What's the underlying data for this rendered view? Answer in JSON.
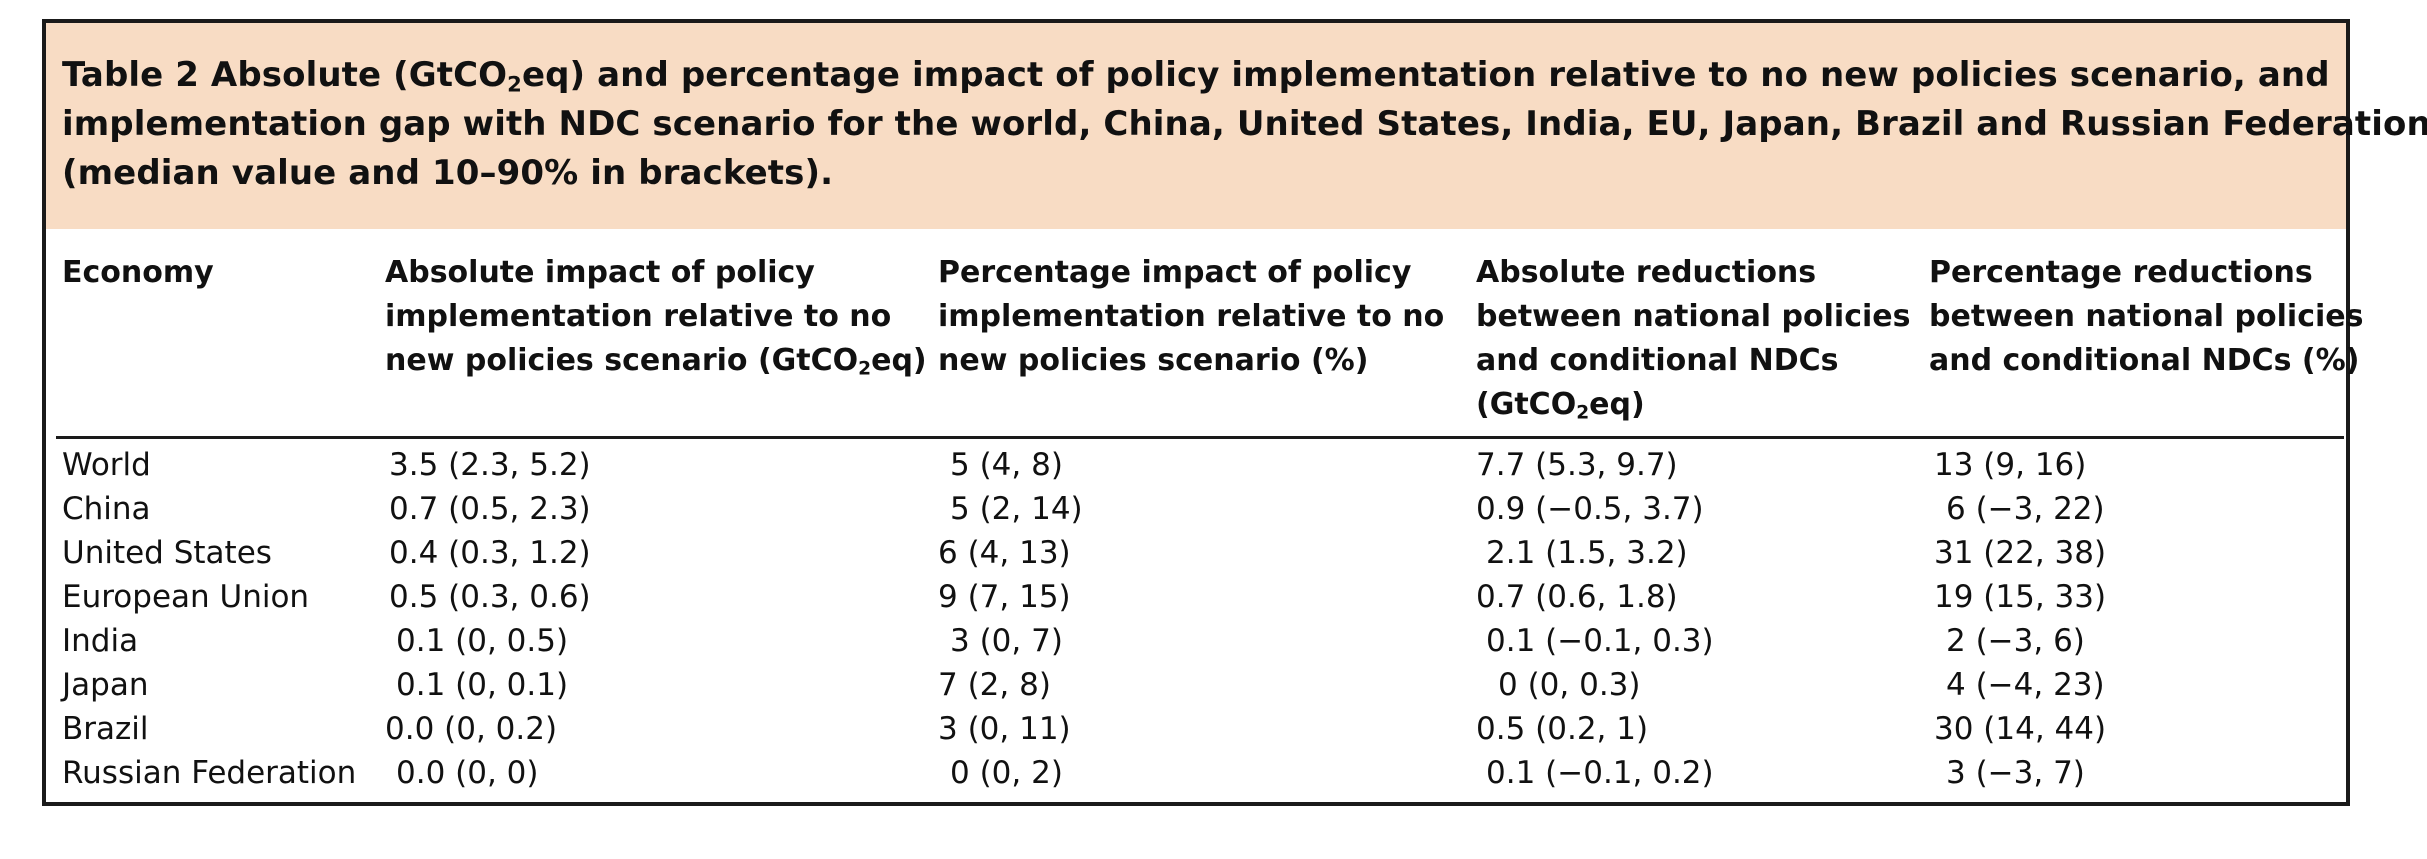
{
  "caption": {
    "line1_pre": "Table 2 Absolute (GtCO",
    "line1_sub": "2",
    "line1_post": "eq) and percentage impact of policy implementation relative to no new policies scenario, and",
    "line2": "implementation gap with NDC scenario for the world, China, United States, India, EU, Japan, Brazil and Russian Federation",
    "line3": "(median value and 10–90% in brackets)."
  },
  "headers": {
    "economy": [
      "Economy"
    ],
    "abs_policy": [
      "Absolute impact of policy",
      "implementation relative to no",
      "new policies scenario (GtCO",
      "2",
      "eq)"
    ],
    "pct_policy": [
      "Percentage impact of policy",
      "implementation relative to no",
      "new policies scenario (%)"
    ],
    "abs_ndc": [
      "Absolute reductions",
      "between national policies",
      "and conditional NDCs",
      "(GtCO",
      "2",
      "eq)"
    ],
    "pct_ndc": [
      "Percentage reductions",
      "between national policies",
      "and conditional NDCs (%)"
    ]
  },
  "rows": [
    {
      "economy": "World",
      "abs_policy": "3.5 (2.3, 5.2)",
      "pct_policy": "5 (4, 8)",
      "abs_ndc": "7.7 (5.3, 9.7)",
      "pct_ndc": "13 (9, 16)"
    },
    {
      "economy": "China",
      "abs_policy": "0.7 (0.5, 2.3)",
      "pct_policy": "5 (2, 14)",
      "abs_ndc": "0.9 (−0.5, 3.7)",
      "pct_ndc": "6 (−3, 22)"
    },
    {
      "economy": "United States",
      "abs_policy": "0.4 (0.3, 1.2)",
      "pct_policy": "6 (4, 13)",
      "abs_ndc": "2.1 (1.5, 3.2)",
      "pct_ndc": "31 (22, 38)"
    },
    {
      "economy": "European Union",
      "abs_policy": "0.5 (0.3, 0.6)",
      "pct_policy": "9 (7, 15)",
      "abs_ndc": "0.7 (0.6, 1.8)",
      "pct_ndc": "19 (15, 33)"
    },
    {
      "economy": "India",
      "abs_policy": "0.1 (0, 0.5)",
      "pct_policy": "3 (0, 7)",
      "abs_ndc": "0.1 (−0.1, 0.3)",
      "pct_ndc": "2 (−3, 6)"
    },
    {
      "economy": "Japan",
      "abs_policy": "0.1 (0, 0.1)",
      "pct_policy": "7 (2, 8)",
      "abs_ndc": "0 (0, 0.3)",
      "pct_ndc": "4 (−4, 23)"
    },
    {
      "economy": "Brazil",
      "abs_policy": "0.0 (0, 0.2)",
      "pct_policy": "3 (0, 11)",
      "abs_ndc": "0.5 (0.2, 1)",
      "pct_ndc": "30 (14, 44)"
    },
    {
      "economy": "Russian Federation",
      "abs_policy": "0.0 (0, 0)",
      "pct_policy": "0 (0, 2)",
      "abs_ndc": "0.1 (−0.1, 0.2)",
      "pct_ndc": "3 (−3, 7)"
    }
  ],
  "colors": {
    "caption_background": "#f8dcc4",
    "border": "#1a1a1a",
    "text": "#111111"
  }
}
